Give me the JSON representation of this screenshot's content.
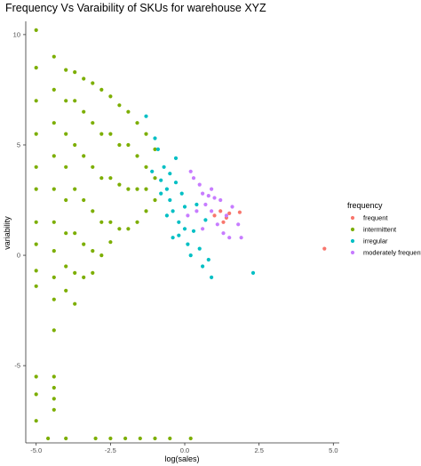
{
  "chart_data": {
    "type": "scatter",
    "title": "Frequency Vs Varaibility of SKUs for warehouse XYZ",
    "xlabel": "log(sales)",
    "ylabel": "variability",
    "xlim": [
      -5.35,
      5.2
    ],
    "ylim": [
      -8.5,
      10.6
    ],
    "grid": false,
    "legend_position": "right",
    "legend_title": "frequency",
    "x_ticks": [
      -5.0,
      -2.5,
      0.0,
      2.5,
      5.0
    ],
    "x_tick_labels": [
      "-5.0",
      "-2.5",
      "0.0",
      "2.5",
      "5.0"
    ],
    "y_ticks": [
      -5,
      0,
      5,
      10
    ],
    "y_tick_labels": [
      "-5",
      "0",
      "5",
      "10"
    ],
    "series": [
      {
        "name": "frequent",
        "color": "#F8766D",
        "points": [
          [
            1.5,
            1.9
          ],
          [
            1.2,
            2.0
          ],
          [
            1.85,
            1.95
          ],
          [
            1.4,
            1.7
          ],
          [
            1.0,
            1.8
          ],
          [
            4.7,
            0.3
          ],
          [
            1.3,
            1.5
          ]
        ]
      },
      {
        "name": "intermittent",
        "color": "#7CAE00",
        "points": [
          [
            -5.0,
            10.2
          ],
          [
            -5.0,
            8.5
          ],
          [
            -5.0,
            7.0
          ],
          [
            -5.0,
            5.5
          ],
          [
            -5.0,
            4.0
          ],
          [
            -5.0,
            3.0
          ],
          [
            -5.0,
            1.5
          ],
          [
            -5.0,
            0.5
          ],
          [
            -5.0,
            -0.7
          ],
          [
            -5.0,
            -1.4
          ],
          [
            -5.0,
            -5.5
          ],
          [
            -5.0,
            -6.3
          ],
          [
            -5.0,
            -7.5
          ],
          [
            -4.4,
            9.0
          ],
          [
            -4.4,
            7.5
          ],
          [
            -4.4,
            6.0
          ],
          [
            -4.4,
            4.5
          ],
          [
            -4.4,
            3.0
          ],
          [
            -4.4,
            1.5
          ],
          [
            -4.4,
            0.2
          ],
          [
            -4.4,
            -1.0
          ],
          [
            -4.4,
            -2.0
          ],
          [
            -4.4,
            -3.4
          ],
          [
            -4.4,
            -5.5
          ],
          [
            -4.4,
            -6.0
          ],
          [
            -4.4,
            -6.5
          ],
          [
            -4.4,
            -7.0
          ],
          [
            -4.0,
            8.4
          ],
          [
            -4.0,
            7.0
          ],
          [
            -4.0,
            5.5
          ],
          [
            -4.0,
            4.0
          ],
          [
            -4.0,
            2.5
          ],
          [
            -4.0,
            1.0
          ],
          [
            -4.0,
            -0.5
          ],
          [
            -4.0,
            -1.6
          ],
          [
            -3.7,
            8.3
          ],
          [
            -3.7,
            7.0
          ],
          [
            -3.7,
            5.0
          ],
          [
            -3.7,
            3.0
          ],
          [
            -3.7,
            1.0
          ],
          [
            -3.7,
            -0.8
          ],
          [
            -3.7,
            -2.2
          ],
          [
            -3.4,
            8.0
          ],
          [
            -3.4,
            6.5
          ],
          [
            -3.4,
            4.5
          ],
          [
            -3.4,
            2.5
          ],
          [
            -3.4,
            0.5
          ],
          [
            -3.4,
            -1.0
          ],
          [
            -3.1,
            7.8
          ],
          [
            -3.1,
            6.0
          ],
          [
            -3.1,
            4.0
          ],
          [
            -3.1,
            2.0
          ],
          [
            -3.1,
            0.2
          ],
          [
            -3.1,
            -0.8
          ],
          [
            -2.8,
            7.5
          ],
          [
            -2.8,
            5.5
          ],
          [
            -2.8,
            3.5
          ],
          [
            -2.8,
            1.5
          ],
          [
            -2.8,
            0.0
          ],
          [
            -2.5,
            7.2
          ],
          [
            -2.5,
            5.5
          ],
          [
            -2.5,
            3.5
          ],
          [
            -2.5,
            1.5
          ],
          [
            -2.5,
            0.6
          ],
          [
            -2.2,
            6.8
          ],
          [
            -2.2,
            5.0
          ],
          [
            -2.2,
            3.2
          ],
          [
            -2.2,
            1.2
          ],
          [
            -1.9,
            6.5
          ],
          [
            -1.9,
            5.0
          ],
          [
            -1.9,
            3.0
          ],
          [
            -1.9,
            1.2
          ],
          [
            -1.6,
            6.0
          ],
          [
            -1.6,
            4.5
          ],
          [
            -1.6,
            3.0
          ],
          [
            -1.6,
            1.5
          ],
          [
            -1.3,
            5.5
          ],
          [
            -1.3,
            4.0
          ],
          [
            -1.3,
            3.0
          ],
          [
            -1.3,
            2.0
          ],
          [
            -1.0,
            4.8
          ],
          [
            -1.0,
            3.5
          ],
          [
            -1.0,
            2.5
          ],
          [
            -3.0,
            -8.3
          ],
          [
            -2.5,
            -8.3
          ],
          [
            -2.0,
            -8.3
          ],
          [
            -1.5,
            -8.3
          ],
          [
            -1.0,
            -8.3
          ],
          [
            -0.5,
            -8.3
          ],
          [
            0.2,
            -8.3
          ],
          [
            -4.0,
            -8.3
          ],
          [
            -4.6,
            -8.3
          ]
        ]
      },
      {
        "name": "irregular",
        "color": "#00BFC4",
        "points": [
          [
            -1.3,
            6.3
          ],
          [
            -1.0,
            5.3
          ],
          [
            -0.9,
            4.8
          ],
          [
            -0.7,
            4.0
          ],
          [
            -0.6,
            3.0
          ],
          [
            -0.5,
            3.7
          ],
          [
            -0.5,
            2.5
          ],
          [
            -0.4,
            2.0
          ],
          [
            -0.3,
            3.3
          ],
          [
            -0.2,
            1.5
          ],
          [
            -0.2,
            0.9
          ],
          [
            0.0,
            2.2
          ],
          [
            0.0,
            1.2
          ],
          [
            0.1,
            0.5
          ],
          [
            0.2,
            0.0
          ],
          [
            0.3,
            1.1
          ],
          [
            0.5,
            0.3
          ],
          [
            0.6,
            -0.5
          ],
          [
            0.8,
            -0.2
          ],
          [
            0.9,
            -1.0
          ],
          [
            -0.8,
            2.8
          ],
          [
            -0.6,
            1.8
          ],
          [
            -0.4,
            0.8
          ],
          [
            -0.1,
            2.8
          ],
          [
            0.4,
            2.3
          ],
          [
            -0.3,
            4.4
          ],
          [
            2.3,
            -0.8
          ],
          [
            0.7,
            1.6
          ],
          [
            -1.1,
            3.8
          ],
          [
            -0.8,
            3.4
          ]
        ]
      },
      {
        "name": "moderately frequent",
        "color": "#C77CFF",
        "points": [
          [
            0.2,
            3.8
          ],
          [
            0.5,
            3.2
          ],
          [
            0.8,
            2.7
          ],
          [
            0.9,
            2.0
          ],
          [
            1.1,
            1.4
          ],
          [
            1.3,
            1.0
          ],
          [
            1.5,
            0.8
          ],
          [
            1.6,
            2.2
          ],
          [
            0.7,
            2.3
          ],
          [
            0.4,
            2.0
          ],
          [
            1.2,
            2.5
          ],
          [
            0.3,
            3.5
          ],
          [
            0.6,
            1.2
          ],
          [
            0.9,
            3.0
          ],
          [
            1.8,
            1.4
          ],
          [
            1.9,
            0.8
          ],
          [
            1.0,
            2.6
          ],
          [
            0.1,
            1.8
          ],
          [
            1.4,
            1.8
          ],
          [
            0.6,
            2.8
          ]
        ]
      }
    ]
  }
}
